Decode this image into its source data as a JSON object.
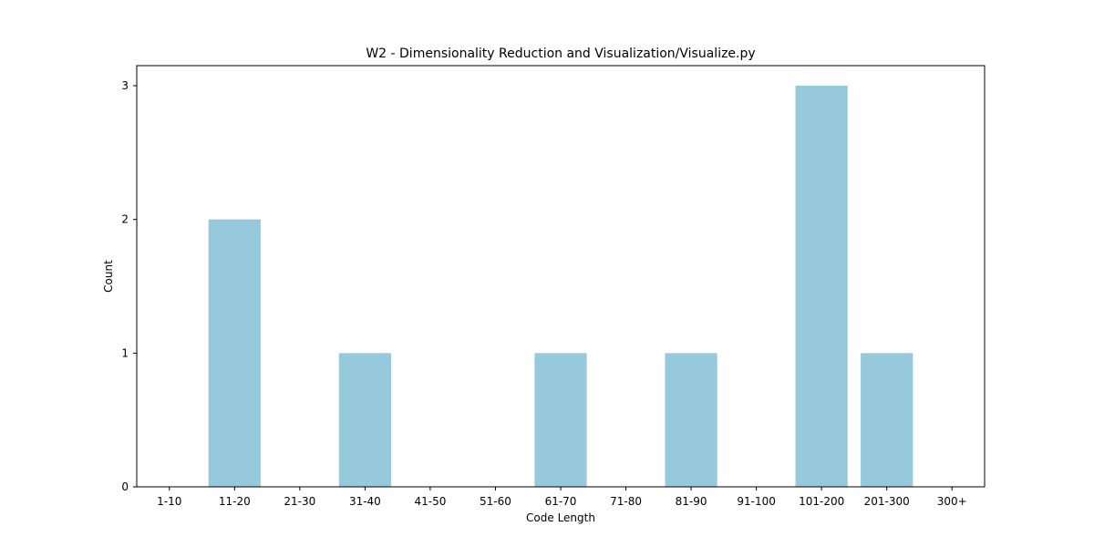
{
  "chart_data": {
    "type": "bar",
    "title": "W2 - Dimensionality Reduction and Visualization/Visualize.py",
    "xlabel": "Code Length",
    "ylabel": "Count",
    "categories": [
      "1-10",
      "11-20",
      "21-30",
      "31-40",
      "41-50",
      "51-60",
      "61-70",
      "71-80",
      "81-90",
      "91-100",
      "101-200",
      "201-300",
      "300+"
    ],
    "values": [
      0,
      2,
      0,
      1,
      0,
      0,
      1,
      0,
      1,
      0,
      3,
      1,
      0
    ],
    "ylim": [
      0,
      3.15
    ],
    "yticks": [
      0,
      1,
      2,
      3
    ],
    "bar_color": "#96c9dc",
    "grid": false,
    "legend": "none"
  }
}
